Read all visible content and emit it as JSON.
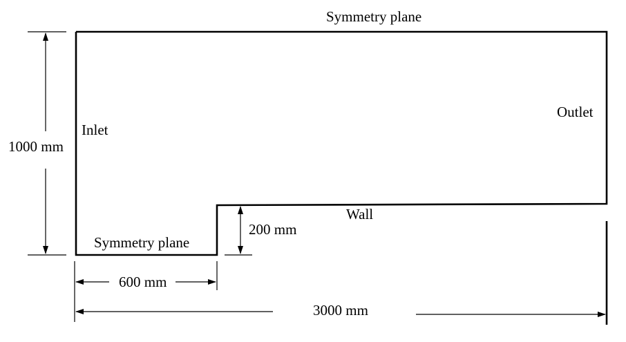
{
  "diagram": {
    "line_color": "#000000",
    "labels": {
      "top_boundary": "Symmetry plane",
      "bottom_boundary": "Symmetry plane",
      "inlet": "Inlet",
      "outlet": "Outlet",
      "wall": "Wall"
    },
    "dimensions": {
      "height": "1000 mm",
      "step_height": "200 mm",
      "step_length": "600 mm",
      "total_length": "3000 mm"
    }
  }
}
